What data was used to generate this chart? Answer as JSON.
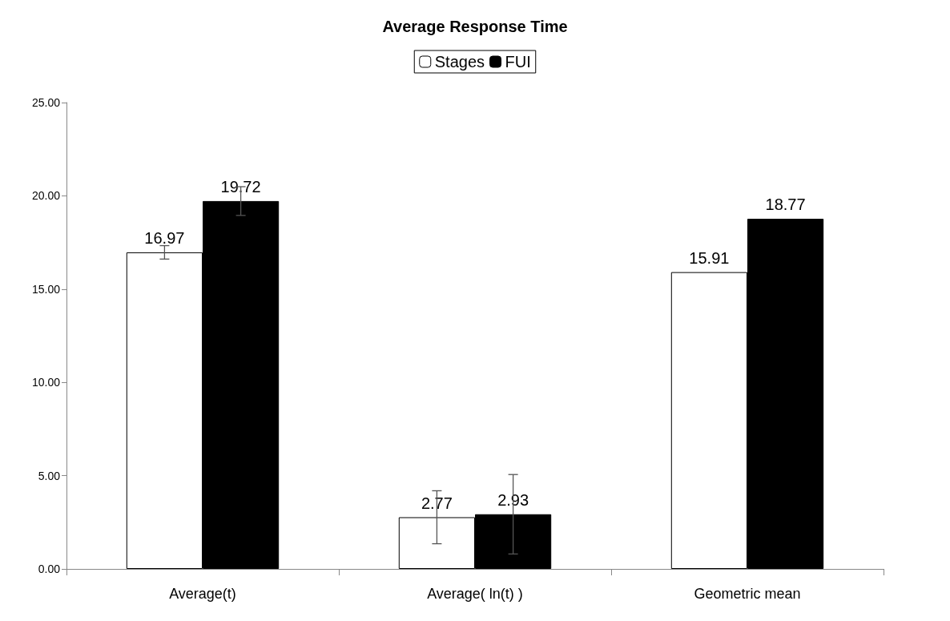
{
  "chart_data": {
    "type": "bar",
    "title": "Average Response Time",
    "categories": [
      "Average(t)",
      "Average( ln(t) )",
      "Geometric mean"
    ],
    "series": [
      {
        "name": "Stages",
        "color": "#ffffff",
        "values": [
          16.97,
          2.77,
          15.91
        ],
        "errors": [
          0.36,
          1.42,
          null
        ]
      },
      {
        "name": "FUI",
        "color": "#000000",
        "values": [
          19.72,
          2.93,
          18.77
        ],
        "errors": [
          0.77,
          2.13,
          null
        ]
      }
    ],
    "ylim": [
      0,
      25
    ],
    "yticks": [
      {
        "value": 0,
        "label": "0.00"
      },
      {
        "value": 5,
        "label": "5.00"
      },
      {
        "value": 10,
        "label": "10.00"
      },
      {
        "value": 15,
        "label": "15.00"
      },
      {
        "value": 20,
        "label": "20.00"
      },
      {
        "value": 25,
        "label": "25.00"
      }
    ],
    "data_labels": true,
    "grid": false,
    "legend": "top"
  }
}
